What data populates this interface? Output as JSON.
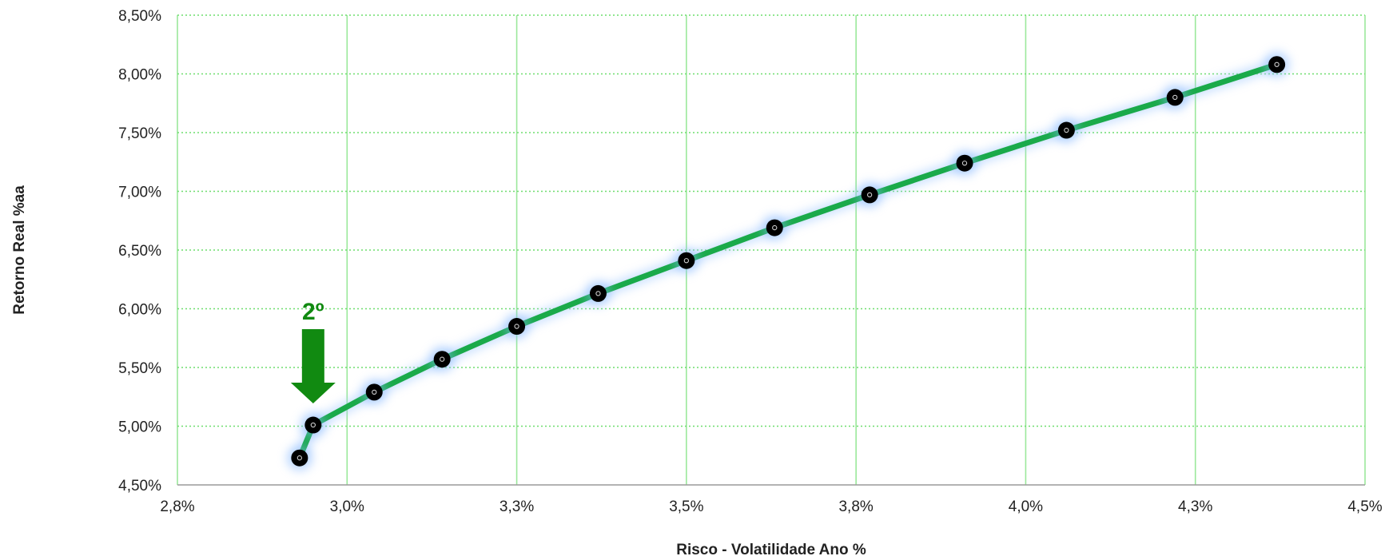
{
  "chart_data": {
    "type": "line",
    "title": "",
    "xlabel": "Risco - Volatilidade Ano %",
    "ylabel": "Retorno Real %aa",
    "xlim": [
      2.75,
      4.5
    ],
    "ylim": [
      4.5,
      8.5
    ],
    "x_ticks": [
      2.75,
      3.0,
      3.25,
      3.5,
      3.75,
      4.0,
      4.25,
      4.5
    ],
    "x_tick_labels": [
      "2,8%",
      "3,0%",
      "3,3%",
      "3,5%",
      "3,8%",
      "4,0%",
      "4,3%",
      "4,5%"
    ],
    "y_ticks": [
      4.5,
      5.0,
      5.5,
      6.0,
      6.5,
      7.0,
      7.5,
      8.0,
      8.5
    ],
    "y_tick_labels": [
      "4,50%",
      "5,00%",
      "5,50%",
      "6,00%",
      "6,50%",
      "7,00%",
      "7,50%",
      "8,00%",
      "8,50%"
    ],
    "grid": true,
    "series": [
      {
        "color": "#1aaa4a",
        "marker_color": "#000000",
        "x": [
          2.93,
          2.95,
          3.04,
          3.14,
          3.25,
          3.37,
          3.5,
          3.63,
          3.77,
          3.91,
          4.06,
          4.22,
          4.37
        ],
        "y": [
          4.73,
          5.01,
          5.29,
          5.57,
          5.85,
          6.13,
          6.41,
          6.69,
          6.97,
          7.24,
          7.52,
          7.8,
          8.08
        ]
      }
    ],
    "annotations": [
      {
        "text": "2º",
        "x": 2.95,
        "y": 5.01,
        "type": "arrow-down",
        "color": "#118a11"
      }
    ]
  }
}
